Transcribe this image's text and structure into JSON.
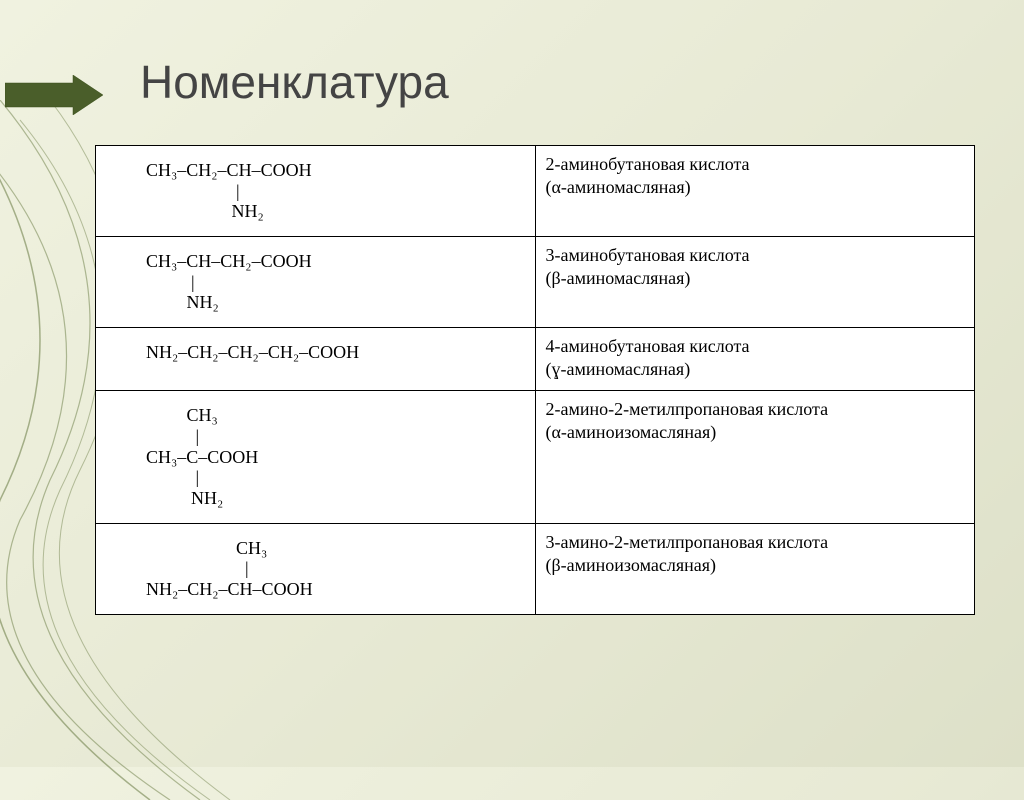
{
  "title": "Номенклатура",
  "background": {
    "gradient_start": "#f0f2e0",
    "gradient_mid": "#e8ead5",
    "gradient_end": "#dde0c8",
    "curve_color": "#5a6e32"
  },
  "arrow": {
    "fill": "#4a5e2a",
    "stroke": "#3a4e1a"
  },
  "table": {
    "type": "table",
    "columns": [
      "formula",
      "name"
    ],
    "border_color": "#000000",
    "background_color": "#ffffff",
    "font_family": "Times New Roman",
    "font_size_pt": 14,
    "rows": [
      {
        "formula_lines": [
          "CH₃–CH₂–CH–COOH",
          "                    |",
          "                   NH₂"
        ],
        "name_main": "2-аминобутановая кислота",
        "name_alt": "(α-аминомасляная)"
      },
      {
        "formula_lines": [
          "CH₃–CH–CH₂–COOH",
          "          |",
          "         NH₂"
        ],
        "name_main": "3-аминобутановая кислота",
        "name_alt": "(β-аминомасляная)"
      },
      {
        "formula_lines": [
          "NH₂–CH₂–CH₂–CH₂–COOH"
        ],
        "name_main": "4-аминобутановая кислота",
        "name_alt": "(ɣ-аминомасляная)"
      },
      {
        "formula_lines": [
          "         CH₃",
          "           |",
          "CH₃–C–COOH",
          "           |",
          "          NH₂"
        ],
        "name_main": "2-амино-2-метилпропановая кислота",
        "name_alt": "(α-аминоизомасляная)"
      },
      {
        "formula_lines": [
          "                    CH₃",
          "                      |",
          "NH₂–CH₂–CH–COOH"
        ],
        "name_main": "3-амино-2-метилпропановая кислота",
        "name_alt": "(β-аминоизомасляная)"
      }
    ]
  }
}
